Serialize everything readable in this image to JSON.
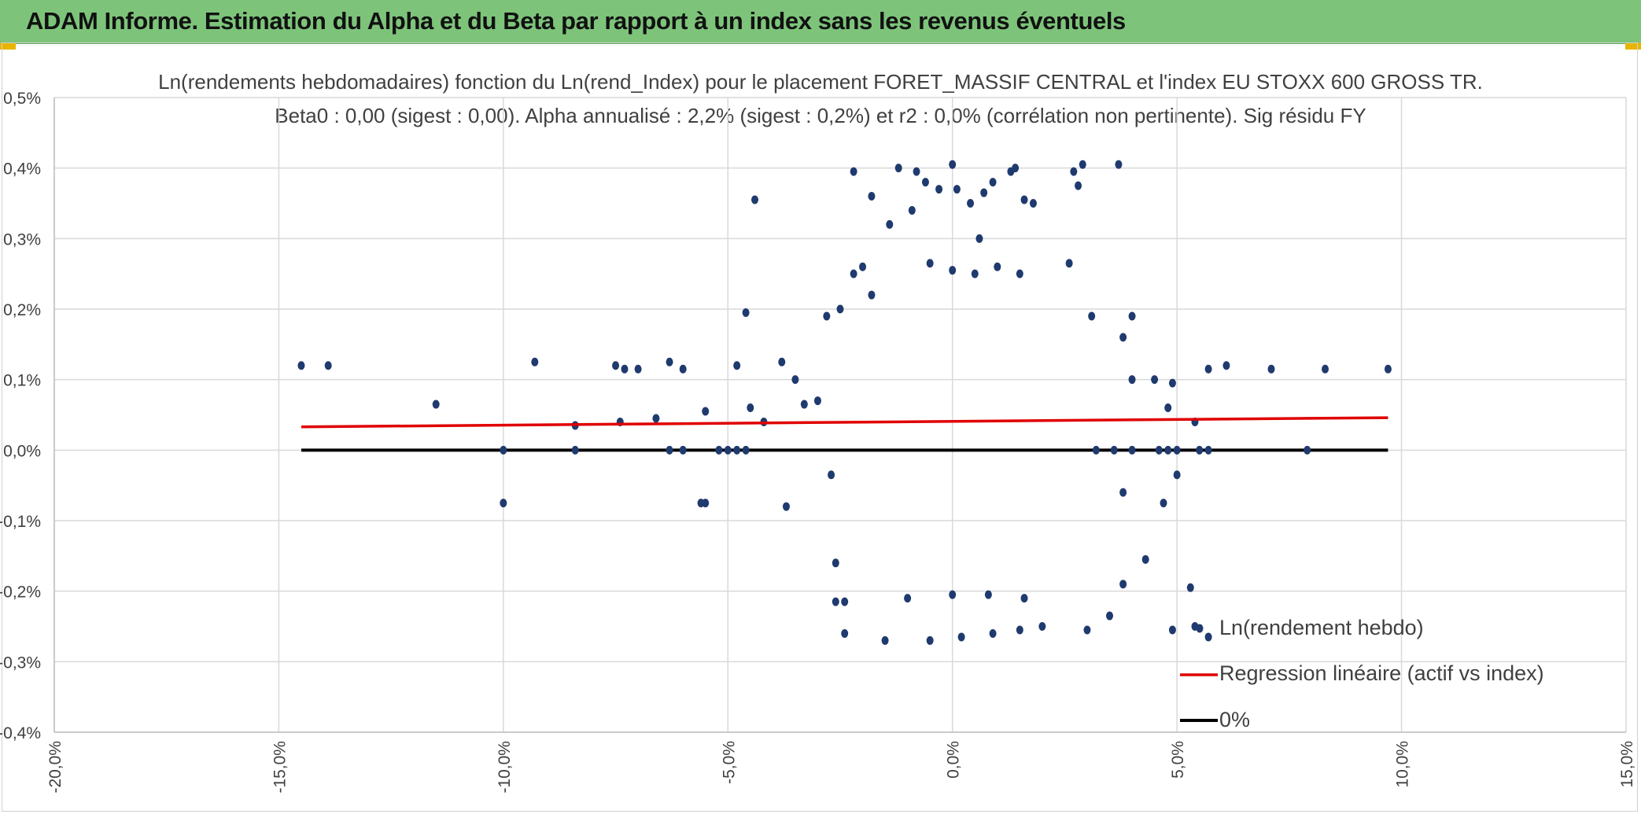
{
  "page": {
    "header_title": "ADAM Informe. Estimation du Alpha et du Beta par rapport à un index sans les revenus éventuels"
  },
  "chart_data": {
    "type": "scatter",
    "title": "Ln(rendements hebdomadaires) fonction du Ln(rend_Index) pour le placement FORET_MASSIF CENTRAL et l'index EU STOXX 600 GROSS TR.",
    "subtitle": "Beta0 : 0,00 (sigest : 0,00). Alpha annualisé : 2,2% (sigest : 0,2%) et r2 : 0,0% (corrélation non pertinente). Sig résidu FY",
    "xlabel": "",
    "ylabel": "",
    "xlim": [
      -20,
      15
    ],
    "ylim": [
      -0.4,
      0.5
    ],
    "x_ticks": [
      "-20,0%",
      "-15,0%",
      "-10,0%",
      "-5,0%",
      "0,0%",
      "5,0%",
      "10,0%",
      "15,0%"
    ],
    "y_ticks": [
      "-0,4%",
      "-0,3%",
      "-0,2%",
      "-0,1%",
      "0,0%",
      "0,1%",
      "0,2%",
      "0,3%",
      "0,4%",
      "0,5%"
    ],
    "grid": true,
    "legend_position": "bottom-right",
    "colors": {
      "points": "#1f3a6e",
      "regression": "#e00000",
      "zero": "#000000"
    },
    "series": [
      {
        "name": "Ln(rendement hebdo)",
        "kind": "scatter",
        "points": [
          [
            -14.5,
            0.12
          ],
          [
            -13.9,
            0.12
          ],
          [
            -11.5,
            0.065
          ],
          [
            -9.3,
            0.125
          ],
          [
            -10.0,
            -0.075
          ],
          [
            -10.0,
            0.0
          ],
          [
            -8.4,
            0.035
          ],
          [
            -8.4,
            0.0
          ],
          [
            -7.5,
            0.12
          ],
          [
            -7.4,
            0.04
          ],
          [
            -7.3,
            0.115
          ],
          [
            -7.0,
            0.115
          ],
          [
            -6.6,
            0.045
          ],
          [
            -6.3,
            0.0
          ],
          [
            -6.0,
            0.0
          ],
          [
            -6.3,
            0.125
          ],
          [
            -6.0,
            0.115
          ],
          [
            -5.5,
            0.055
          ],
          [
            -5.6,
            -0.075
          ],
          [
            -5.5,
            -0.075
          ],
          [
            -5.2,
            0.0
          ],
          [
            -5.0,
            0.0
          ],
          [
            -4.8,
            0.0
          ],
          [
            -4.6,
            0.0
          ],
          [
            -4.4,
            0.355
          ],
          [
            -4.6,
            0.195
          ],
          [
            -4.8,
            0.12
          ],
          [
            -4.5,
            0.06
          ],
          [
            -4.2,
            0.04
          ],
          [
            -3.8,
            0.125
          ],
          [
            -3.5,
            0.1
          ],
          [
            -3.3,
            0.065
          ],
          [
            -3.0,
            0.07
          ],
          [
            -2.8,
            0.19
          ],
          [
            -2.5,
            0.2
          ],
          [
            -3.7,
            -0.08
          ],
          [
            -2.7,
            -0.035
          ],
          [
            -2.6,
            -0.16
          ],
          [
            -2.6,
            -0.215
          ],
          [
            -2.4,
            -0.215
          ],
          [
            -2.4,
            -0.26
          ],
          [
            -2.2,
            0.25
          ],
          [
            -2.0,
            0.26
          ],
          [
            -1.8,
            0.22
          ],
          [
            -2.2,
            0.395
          ],
          [
            -1.8,
            0.36
          ],
          [
            -1.4,
            0.32
          ],
          [
            -1.2,
            0.4
          ],
          [
            -0.8,
            0.395
          ],
          [
            -0.6,
            0.38
          ],
          [
            -0.9,
            0.34
          ],
          [
            -0.3,
            0.37
          ],
          [
            0.0,
            0.405
          ],
          [
            0.1,
            0.37
          ],
          [
            0.4,
            0.35
          ],
          [
            0.7,
            0.365
          ],
          [
            0.9,
            0.38
          ],
          [
            1.3,
            0.395
          ],
          [
            1.6,
            0.355
          ],
          [
            1.8,
            0.35
          ],
          [
            1.4,
            0.4
          ],
          [
            0.6,
            0.3
          ],
          [
            2.7,
            0.395
          ],
          [
            2.9,
            0.405
          ],
          [
            2.8,
            0.375
          ],
          [
            3.7,
            0.405
          ],
          [
            2.6,
            0.265
          ],
          [
            1.0,
            0.26
          ],
          [
            0.5,
            0.25
          ],
          [
            -0.5,
            0.265
          ],
          [
            0.0,
            0.255
          ],
          [
            1.5,
            0.25
          ],
          [
            -1.5,
            -0.27
          ],
          [
            -0.5,
            -0.27
          ],
          [
            0.2,
            -0.265
          ],
          [
            0.9,
            -0.26
          ],
          [
            1.5,
            -0.255
          ],
          [
            -1.0,
            -0.21
          ],
          [
            0.0,
            -0.205
          ],
          [
            0.8,
            -0.205
          ],
          [
            1.6,
            -0.21
          ],
          [
            2.0,
            -0.25
          ],
          [
            3.0,
            -0.255
          ],
          [
            3.5,
            -0.235
          ],
          [
            3.8,
            -0.19
          ],
          [
            4.3,
            -0.155
          ],
          [
            4.7,
            -0.075
          ],
          [
            5.0,
            -0.035
          ],
          [
            5.3,
            -0.195
          ],
          [
            4.9,
            -0.255
          ],
          [
            5.4,
            -0.25
          ],
          [
            5.7,
            -0.265
          ],
          [
            3.8,
            -0.06
          ],
          [
            4.0,
            0.19
          ],
          [
            3.8,
            0.16
          ],
          [
            3.1,
            0.19
          ],
          [
            4.0,
            0.1
          ],
          [
            4.5,
            0.1
          ],
          [
            4.8,
            0.06
          ],
          [
            4.9,
            0.095
          ],
          [
            5.0,
            0.0
          ],
          [
            5.4,
            0.04
          ],
          [
            5.7,
            0.115
          ],
          [
            6.1,
            0.12
          ],
          [
            7.1,
            0.115
          ],
          [
            7.9,
            0.0
          ],
          [
            8.3,
            0.115
          ],
          [
            9.7,
            0.115
          ],
          [
            5.5,
            0.0
          ],
          [
            5.7,
            0.0
          ],
          [
            4.6,
            0.0
          ],
          [
            4.8,
            0.0
          ],
          [
            4.0,
            0.0
          ],
          [
            3.6,
            0.0
          ],
          [
            3.2,
            0.0
          ]
        ]
      },
      {
        "name": "Regression linéaire (actif vs index)",
        "kind": "line",
        "points": [
          [
            -14.5,
            0.033
          ],
          [
            9.7,
            0.046
          ]
        ]
      },
      {
        "name": "0%",
        "kind": "line",
        "points": [
          [
            -14.5,
            0.0
          ],
          [
            9.7,
            0.0
          ]
        ]
      }
    ]
  }
}
